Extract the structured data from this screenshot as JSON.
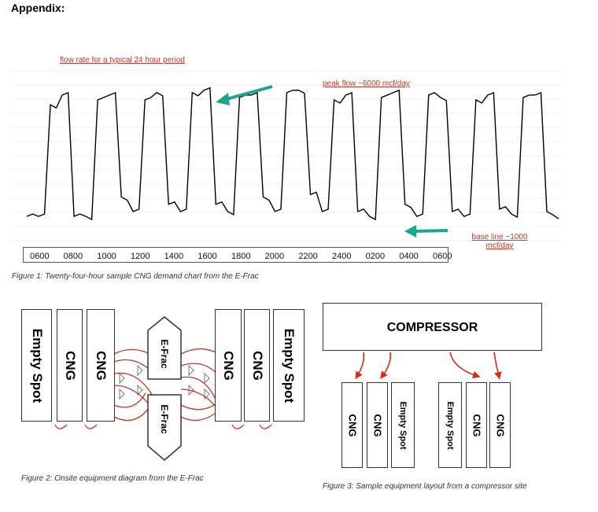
{
  "heading": "Appendix:",
  "chart_data": {
    "type": "line",
    "title": "",
    "xlabel": "",
    "ylabel": "",
    "x_tick_labels": [
      "0600",
      "0800",
      "1000",
      "1200",
      "1400",
      "1600",
      "1800",
      "2000",
      "2200",
      "2400",
      "0200",
      "0400",
      "0600"
    ],
    "annotations": {
      "title_note": "flow rate for a typical 24 hour period",
      "peak": "peak flow ~6000 mcf/day",
      "baseline": "base line ~1000 mcf/day"
    },
    "series": [
      {
        "values": [
          1000,
          1000,
          5600,
          6000,
          1000,
          1000,
          5800,
          6000,
          1800,
          1200,
          5800,
          6100,
          1500,
          1200,
          6100,
          6200,
          1500,
          1200,
          5900,
          6000,
          1800,
          1200,
          6100,
          6200,
          1900,
          1200,
          5800,
          6000,
          1200,
          1000,
          5900,
          6100,
          1500,
          1000,
          6000,
          5900,
          1200,
          1000,
          5800,
          6000,
          1300,
          1100,
          5900,
          6000,
          1200,
          900
        ]
      }
    ],
    "grid": true
  },
  "captions": {
    "fig1": "Figure 1: Twenty-four-hour sample CNG demand chart from the E-Frac",
    "fig2": "Figure 2: Onsite equipment diagram from the E-Frac",
    "fig3": "Figure 3: Sample equipment layout from a compressor site"
  },
  "fig2": {
    "left_slots": [
      "Empty Spot",
      "CNG",
      "CNG"
    ],
    "right_slots": [
      "CNG",
      "CNG",
      "Empty Spot"
    ],
    "efrac": [
      "E-Frac",
      "E-Frac"
    ]
  },
  "fig3": {
    "compressor": "COMPRESSOR",
    "left_slots": [
      "CNG",
      "CNG",
      "Empty Spot"
    ],
    "right_slots": [
      "Empty Spot",
      "CNG",
      "CNG"
    ]
  },
  "colors": {
    "accent_arrow": "#1fa58e",
    "annotation": "#c0392b",
    "hose": "#c0392b"
  }
}
